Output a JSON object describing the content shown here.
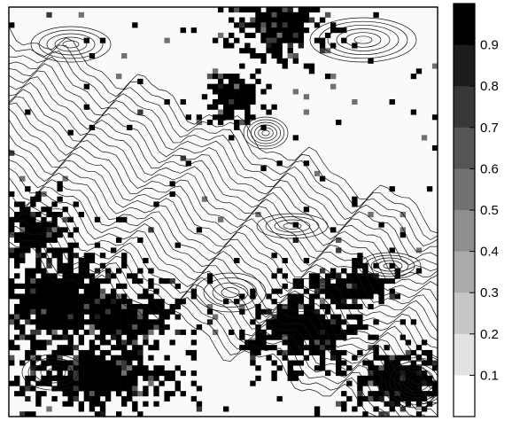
{
  "chart_data": {
    "type": "heatmap",
    "title": "",
    "xlabel": "",
    "ylabel": "",
    "grid": false,
    "overlay": "contour lines",
    "colorbar": {
      "position": "right",
      "range": [
        0,
        1
      ],
      "levels": [
        {
          "lo": 0.9,
          "hi": 1.0,
          "color": "#000000"
        },
        {
          "lo": 0.8,
          "hi": 0.9,
          "color": "#1c1c1c"
        },
        {
          "lo": 0.7,
          "hi": 0.8,
          "color": "#383838"
        },
        {
          "lo": 0.6,
          "hi": 0.7,
          "color": "#555555"
        },
        {
          "lo": 0.5,
          "hi": 0.6,
          "color": "#717171"
        },
        {
          "lo": 0.4,
          "hi": 0.5,
          "color": "#8e8e8e"
        },
        {
          "lo": 0.3,
          "hi": 0.4,
          "color": "#aaaaaa"
        },
        {
          "lo": 0.2,
          "hi": 0.3,
          "color": "#c6c6c6"
        },
        {
          "lo": 0.1,
          "hi": 0.2,
          "color": "#e2e2e2"
        },
        {
          "lo": 0.0,
          "hi": 0.1,
          "color": "#ffffff"
        }
      ],
      "tick_labels": [
        "0.9",
        "0.8",
        "0.7",
        "0.6",
        "0.5",
        "0.4",
        "0.3",
        "0.2",
        "0.1"
      ]
    },
    "dark_regions": [
      {
        "location": "top-center",
        "level": 0.9
      },
      {
        "location": "upper-center",
        "level": 0.9
      },
      {
        "location": "lower-left",
        "level": 0.9
      },
      {
        "location": "lower-center",
        "level": 0.9
      },
      {
        "location": "bottom-right",
        "level": 0.8
      }
    ]
  }
}
